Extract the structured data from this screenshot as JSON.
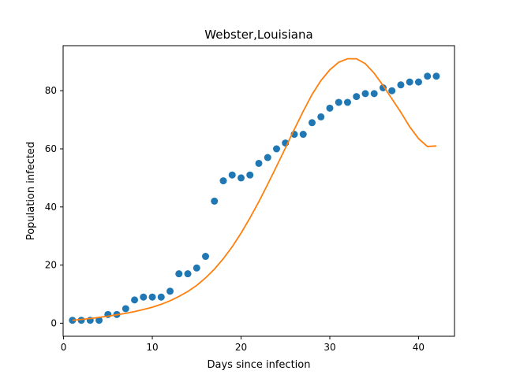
{
  "chart_data": {
    "type": "scatter",
    "title": "Webster,Louisiana",
    "xlabel": "Days since infection",
    "ylabel": "Population infected",
    "xlim": [
      -0.05,
      44.05
    ],
    "ylim": [
      -4.5,
      95.5
    ],
    "xticks": [
      0,
      10,
      20,
      30,
      40
    ],
    "yticks": [
      0,
      20,
      40,
      60,
      80
    ],
    "grid": false,
    "series": [
      {
        "kind": "scatter",
        "color": "#1f77b4",
        "x": [
          1,
          2,
          3,
          4,
          5,
          6,
          7,
          8,
          9,
          10,
          11,
          12,
          13,
          14,
          15,
          16,
          17,
          18,
          19,
          20,
          21,
          22,
          23,
          24,
          25,
          26,
          27,
          28,
          29,
          30,
          31,
          32,
          33,
          34,
          35,
          36,
          37,
          38,
          39,
          40,
          41,
          42
        ],
        "y": [
          1,
          1,
          1,
          1,
          3,
          3,
          5,
          8,
          9,
          9,
          9,
          11,
          17,
          17,
          19,
          23,
          42,
          49,
          51,
          50,
          51,
          55,
          57,
          60,
          62,
          65,
          65,
          69,
          71,
          74,
          76,
          76,
          78,
          79,
          79,
          81,
          80,
          82,
          83,
          83,
          85,
          85
        ]
      },
      {
        "kind": "line",
        "color": "#ff7f0e",
        "x": [
          1,
          2,
          3,
          4,
          5,
          6,
          7,
          8,
          9,
          10,
          11,
          12,
          13,
          14,
          15,
          16,
          17,
          18,
          19,
          20,
          21,
          22,
          23,
          24,
          25,
          26,
          27,
          28,
          29,
          30,
          31,
          32,
          33,
          34,
          35,
          36,
          37,
          38,
          39,
          40,
          41,
          42
        ],
        "y": [
          1.0,
          1.3,
          1.6,
          2.0,
          2.4,
          2.9,
          3.4,
          4.0,
          4.7,
          5.5,
          6.5,
          7.7,
          9.2,
          10.9,
          13.0,
          15.6,
          18.6,
          22.2,
          26.3,
          31.0,
          36.2,
          41.8,
          47.8,
          54.0,
          60.3,
          66.7,
          72.9,
          78.7,
          83.5,
          87.2,
          89.8,
          91.0,
          91.0,
          89.3,
          86.0,
          81.8,
          77.2,
          72.6,
          67.6,
          63.5,
          60.8,
          61.0
        ]
      }
    ]
  }
}
